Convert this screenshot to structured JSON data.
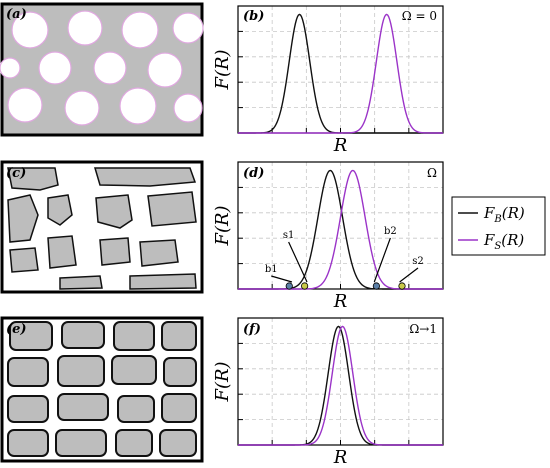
{
  "panels": {
    "a": {
      "label": "(a)"
    },
    "b": {
      "label": "(b)",
      "annotation": "Ω = 0"
    },
    "c": {
      "label": "(c)"
    },
    "d": {
      "label": "(d)",
      "annotation": "Ω",
      "markers": [
        {
          "label": "b1",
          "x": -0.5,
          "color": "#5b7fa6"
        },
        {
          "label": "s1",
          "x": -0.35,
          "color": "#c9c94a"
        },
        {
          "label": "b2",
          "x": 0.35,
          "color": "#5b7fa6"
        },
        {
          "label": "s2",
          "x": 0.6,
          "color": "#c9c94a"
        }
      ]
    },
    "e": {
      "label": "(e)"
    },
    "f": {
      "label": "(f)",
      "annotation": "Ω→1"
    }
  },
  "axis_text": {
    "ylabel": "F(R)",
    "xlabel": "R"
  },
  "legend": {
    "items": [
      {
        "name": "F_B(R)",
        "main": "F",
        "sub": "B",
        "tail": "(R)",
        "color": "#111111"
      },
      {
        "name": "F_S(R)",
        "main": "F",
        "sub": "S",
        "tail": "(R)",
        "color": "#9b34c8"
      }
    ]
  },
  "colors": {
    "bulk": "#111111",
    "surface": "#9b34c8",
    "grain": "#bdbdbd",
    "grid": "#c8c8c8"
  },
  "chart_data": [
    {
      "panel": "b",
      "type": "line",
      "xlim": [
        -1,
        1
      ],
      "ylim": [
        0,
        1.05
      ],
      "grid": true,
      "series": [
        {
          "key": "bulk",
          "mean": -0.4,
          "sd": 0.1,
          "amp": 1
        },
        {
          "key": "surface",
          "mean": 0.45,
          "sd": 0.1,
          "amp": 1
        }
      ]
    },
    {
      "panel": "d",
      "type": "line",
      "xlim": [
        -1,
        1
      ],
      "ylim": [
        0,
        1.05
      ],
      "grid": true,
      "series": [
        {
          "key": "bulk",
          "mean": -0.1,
          "sd": 0.12,
          "amp": 1
        },
        {
          "key": "surface",
          "mean": 0.12,
          "sd": 0.12,
          "amp": 1
        }
      ]
    },
    {
      "panel": "f",
      "type": "line",
      "xlim": [
        -1,
        1
      ],
      "ylim": [
        0,
        1.05
      ],
      "grid": true,
      "series": [
        {
          "key": "bulk",
          "mean": -0.02,
          "sd": 0.1,
          "amp": 1
        },
        {
          "key": "surface",
          "mean": 0.02,
          "sd": 0.1,
          "amp": 1
        }
      ]
    }
  ]
}
